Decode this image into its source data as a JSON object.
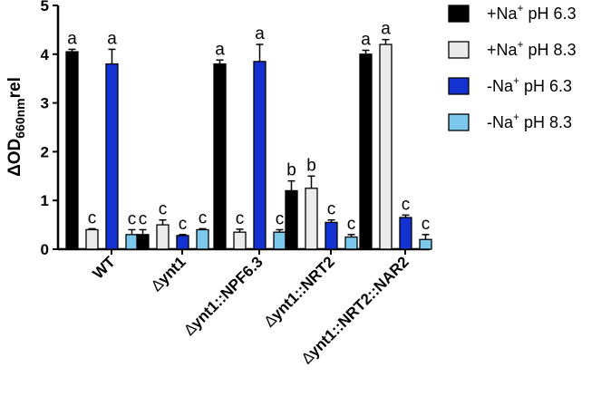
{
  "chart_data": {
    "type": "bar",
    "ylabel": {
      "main": "ΔOD",
      "sub": "660nm",
      "suffix": "rel"
    },
    "ylim": [
      0,
      5
    ],
    "yticks": [
      "0",
      "1",
      "2",
      "3",
      "4",
      "5"
    ],
    "grid": false,
    "legend_position": "top-right",
    "categories": [
      {
        "prefix": "",
        "text": "WT"
      },
      {
        "prefix": "∆",
        "text": "ynt1"
      },
      {
        "prefix": "∆",
        "text": "ynt1::NPF6.3"
      },
      {
        "prefix": "∆",
        "text": "ynt1::NRT2"
      },
      {
        "prefix": "∆",
        "text": "ynt1::NRT2::NAR2"
      }
    ],
    "series": [
      {
        "name": {
          "a": "+Na",
          "sup": "+",
          "b": " pH 6.3"
        },
        "color": "#000000",
        "values": [
          4.05,
          0.3,
          3.8,
          1.2,
          4.0
        ],
        "errors": [
          0.05,
          0.1,
          0.08,
          0.2,
          0.08
        ],
        "letters": [
          "a",
          "c",
          "a",
          "b",
          "a"
        ]
      },
      {
        "name": {
          "a": "+Na",
          "sup": "+",
          "b": " pH 8.3"
        },
        "color": "#ebebeb",
        "values": [
          0.4,
          0.5,
          0.35,
          1.25,
          4.2
        ],
        "errors": [
          0.02,
          0.1,
          0.06,
          0.25,
          0.1
        ],
        "letters": [
          "c",
          "c",
          "c",
          "b",
          "a"
        ]
      },
      {
        "name": {
          "a": "-Na",
          "sup": "+",
          "b": " pH 6.3"
        },
        "color": "#1432d2",
        "values": [
          3.8,
          0.28,
          3.85,
          0.55,
          0.65
        ],
        "errors": [
          0.3,
          0.02,
          0.35,
          0.05,
          0.05
        ],
        "letters": [
          "a",
          "c",
          "a",
          "c",
          "c"
        ]
      },
      {
        "name": {
          "a": "-Na",
          "sup": "+",
          "b": " pH 8.3"
        },
        "color": "#7cc8ec",
        "values": [
          0.3,
          0.4,
          0.35,
          0.25,
          0.2
        ],
        "errors": [
          0.1,
          0.02,
          0.05,
          0.05,
          0.1
        ],
        "letters": [
          "c",
          "c",
          "c",
          "c",
          "c"
        ]
      }
    ]
  }
}
